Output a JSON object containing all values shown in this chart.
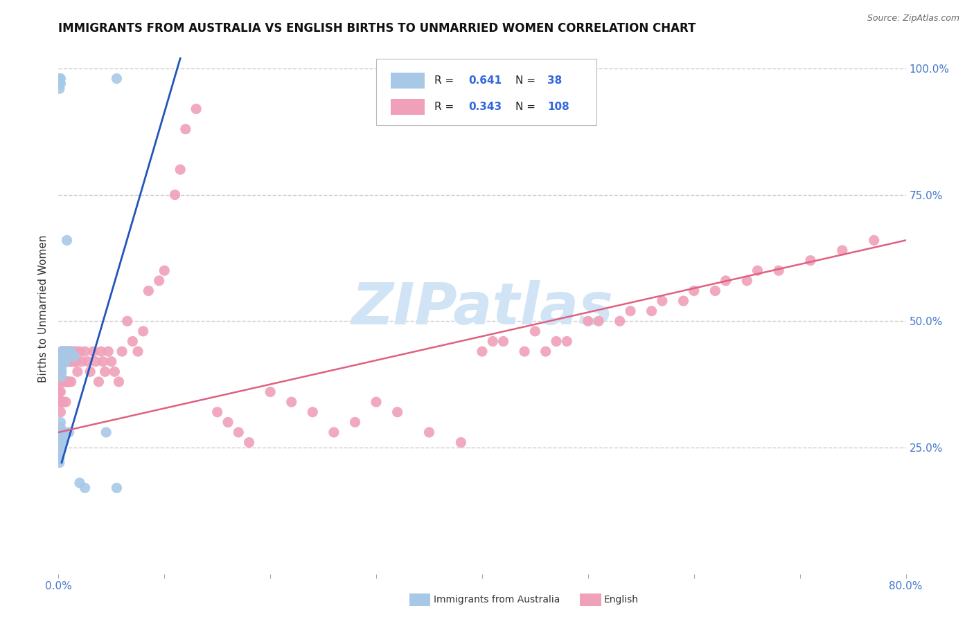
{
  "title": "IMMIGRANTS FROM AUSTRALIA VS ENGLISH BIRTHS TO UNMARRIED WOMEN CORRELATION CHART",
  "source": "Source: ZipAtlas.com",
  "ylabel": "Births to Unmarried Women",
  "blue_color": "#a8c8e8",
  "pink_color": "#f0a0b8",
  "blue_line_color": "#2255bb",
  "pink_line_color": "#e06080",
  "watermark_text": "ZIPatlas",
  "watermark_color": "#d0e4f5",
  "xlim": [
    0.0,
    0.8
  ],
  "ylim": [
    0.0,
    1.05
  ],
  "background_color": "#ffffff",
  "grid_color": "#cccccc",
  "blue_line_x": [
    0.003,
    0.115
  ],
  "blue_line_y": [
    0.22,
    1.02
  ],
  "pink_line_x": [
    0.0,
    0.8
  ],
  "pink_line_y": [
    0.28,
    0.66
  ],
  "blue_x": [
    0.001,
    0.001,
    0.001,
    0.001,
    0.001,
    0.002,
    0.002,
    0.002,
    0.002,
    0.002,
    0.002,
    0.003,
    0.003,
    0.003,
    0.003,
    0.003,
    0.003,
    0.003,
    0.003,
    0.004,
    0.004,
    0.004,
    0.004,
    0.005,
    0.005,
    0.006,
    0.006,
    0.006,
    0.007,
    0.008,
    0.01,
    0.01,
    0.012,
    0.015,
    0.02,
    0.025,
    0.045,
    0.055
  ],
  "blue_y": [
    0.27,
    0.26,
    0.24,
    0.23,
    0.22,
    0.3,
    0.29,
    0.28,
    0.27,
    0.26,
    0.25,
    0.44,
    0.43,
    0.42,
    0.41,
    0.4,
    0.39,
    0.28,
    0.27,
    0.44,
    0.43,
    0.28,
    0.26,
    0.44,
    0.27,
    0.44,
    0.42,
    0.28,
    0.42,
    0.66,
    0.44,
    0.28,
    0.44,
    0.43,
    0.18,
    0.17,
    0.28,
    0.17
  ],
  "pink_x": [
    0.001,
    0.001,
    0.001,
    0.001,
    0.002,
    0.002,
    0.002,
    0.002,
    0.003,
    0.003,
    0.003,
    0.003,
    0.004,
    0.004,
    0.004,
    0.004,
    0.005,
    0.005,
    0.005,
    0.005,
    0.006,
    0.006,
    0.006,
    0.007,
    0.007,
    0.007,
    0.007,
    0.008,
    0.008,
    0.008,
    0.009,
    0.009,
    0.01,
    0.01,
    0.01,
    0.011,
    0.012,
    0.012,
    0.013,
    0.014,
    0.015,
    0.016,
    0.017,
    0.018,
    0.02,
    0.022,
    0.025,
    0.028,
    0.03,
    0.033,
    0.035,
    0.038,
    0.04,
    0.042,
    0.044,
    0.047,
    0.05,
    0.053,
    0.057,
    0.06,
    0.065,
    0.07,
    0.075,
    0.08,
    0.085,
    0.095,
    0.1,
    0.11,
    0.115,
    0.12,
    0.13,
    0.15,
    0.16,
    0.17,
    0.18,
    0.2,
    0.22,
    0.24,
    0.26,
    0.28,
    0.3,
    0.32,
    0.35,
    0.38,
    0.41,
    0.44,
    0.47,
    0.5,
    0.53,
    0.56,
    0.59,
    0.62,
    0.65,
    0.68,
    0.71,
    0.74,
    0.77,
    0.4,
    0.42,
    0.45,
    0.46,
    0.48,
    0.51,
    0.54,
    0.57,
    0.6,
    0.63,
    0.66
  ],
  "pink_y": [
    0.4,
    0.38,
    0.36,
    0.34,
    0.42,
    0.4,
    0.36,
    0.32,
    0.44,
    0.42,
    0.38,
    0.34,
    0.44,
    0.42,
    0.38,
    0.34,
    0.44,
    0.42,
    0.38,
    0.34,
    0.44,
    0.42,
    0.38,
    0.44,
    0.42,
    0.38,
    0.34,
    0.44,
    0.42,
    0.38,
    0.44,
    0.38,
    0.44,
    0.42,
    0.38,
    0.42,
    0.44,
    0.38,
    0.42,
    0.44,
    0.42,
    0.44,
    0.42,
    0.4,
    0.44,
    0.42,
    0.44,
    0.42,
    0.4,
    0.44,
    0.42,
    0.38,
    0.44,
    0.42,
    0.4,
    0.44,
    0.42,
    0.4,
    0.38,
    0.44,
    0.5,
    0.46,
    0.44,
    0.48,
    0.56,
    0.58,
    0.6,
    0.75,
    0.8,
    0.88,
    0.92,
    0.32,
    0.3,
    0.28,
    0.26,
    0.36,
    0.34,
    0.32,
    0.28,
    0.3,
    0.34,
    0.32,
    0.28,
    0.26,
    0.46,
    0.44,
    0.46,
    0.5,
    0.5,
    0.52,
    0.54,
    0.56,
    0.58,
    0.6,
    0.62,
    0.64,
    0.66,
    0.44,
    0.46,
    0.48,
    0.44,
    0.46,
    0.5,
    0.52,
    0.54,
    0.56,
    0.58,
    0.6
  ],
  "blue_top_x": [
    0.001,
    0.001,
    0.001,
    0.002,
    0.002,
    0.055
  ],
  "blue_top_y": [
    0.98,
    0.97,
    0.96,
    0.98,
    0.97,
    0.98
  ]
}
